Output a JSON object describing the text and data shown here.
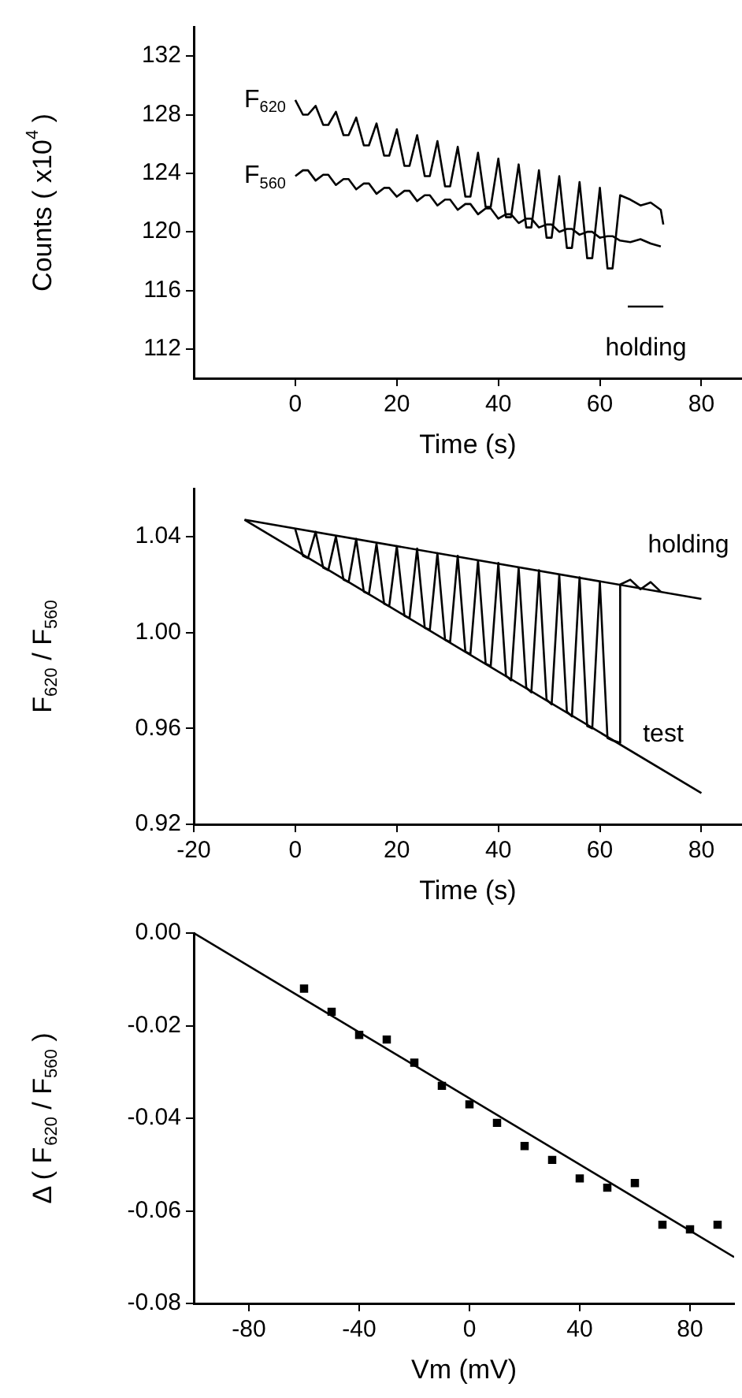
{
  "chart_data": [
    {
      "type": "line",
      "xlabel": "Time (s)",
      "ylabel": "Counts ( x10$^{4}$ )",
      "xlim": [
        -20,
        88
      ],
      "xticks": [
        0,
        20,
        40,
        60,
        80
      ],
      "ylim": [
        110,
        134
      ],
      "yticks": [
        112,
        116,
        120,
        124,
        128,
        132
      ],
      "marker": "none",
      "legend": "left",
      "series": [
        {
          "name": "F$_{620}$",
          "color": "#000000",
          "x": [
            0,
            1.5,
            2.5,
            4,
            5.5,
            6.5,
            8,
            9.5,
            10.5,
            12,
            13.5,
            14.5,
            16,
            17.5,
            18.5,
            20,
            21.5,
            22.5,
            24,
            25.5,
            26.5,
            28,
            29.5,
            30.5,
            32,
            33.5,
            34.5,
            36,
            37.5,
            38.5,
            40,
            41.5,
            42.5,
            44,
            45.5,
            46.5,
            48,
            49.5,
            50.5,
            52,
            53.5,
            54.5,
            56,
            57.5,
            58.5,
            60,
            61.5,
            62.5,
            64,
            66,
            68,
            70,
            72,
            72.5
          ],
          "values": [
            129.0,
            128.0,
            128.0,
            128.6,
            127.3,
            127.3,
            128.2,
            126.6,
            126.6,
            127.8,
            125.9,
            125.9,
            127.4,
            125.2,
            125.2,
            127.0,
            124.5,
            124.5,
            126.6,
            123.8,
            123.8,
            126.2,
            123.1,
            123.1,
            125.8,
            122.4,
            122.4,
            125.4,
            121.7,
            121.7,
            125.0,
            121.0,
            121.0,
            124.6,
            120.3,
            120.3,
            124.2,
            119.6,
            119.6,
            123.8,
            118.9,
            118.9,
            123.4,
            118.2,
            118.2,
            123.0,
            117.5,
            117.5,
            122.5,
            122.2,
            121.8,
            122.0,
            121.5,
            120.5
          ]
        },
        {
          "name": "F$_{560}$",
          "color": "#000000",
          "x": [
            0,
            1.5,
            2.5,
            4,
            5.5,
            6.5,
            8,
            9.5,
            10.5,
            12,
            13.5,
            14.5,
            16,
            17.5,
            18.5,
            20,
            21.5,
            22.5,
            24,
            25.5,
            26.5,
            28,
            29.5,
            30.5,
            32,
            33.5,
            34.5,
            36,
            37.5,
            38.5,
            40,
            41.5,
            42.5,
            44,
            45.5,
            46.5,
            48,
            49.5,
            50.5,
            52,
            53.5,
            54.5,
            56,
            57.5,
            58.5,
            60,
            61.5,
            62.5,
            64,
            66,
            68,
            70,
            72
          ],
          "values": [
            123.8,
            124.2,
            124.2,
            123.5,
            123.9,
            123.9,
            123.2,
            123.6,
            123.6,
            122.9,
            123.3,
            123.3,
            122.6,
            123.0,
            123.0,
            122.4,
            122.8,
            122.8,
            122.1,
            122.5,
            122.5,
            121.8,
            122.2,
            122.2,
            121.5,
            121.9,
            121.9,
            121.2,
            121.6,
            121.6,
            120.9,
            121.2,
            121.2,
            120.6,
            120.9,
            120.9,
            120.3,
            120.5,
            120.5,
            120.0,
            120.2,
            120.2,
            119.8,
            120.0,
            120.0,
            119.6,
            119.7,
            119.7,
            119.4,
            119.3,
            119.5,
            119.2,
            119.0
          ]
        },
        {
          "color": "#000000",
          "x": [
            65.5,
            72.5
          ],
          "values": [
            114.9,
            114.9
          ]
        }
      ],
      "annotations": [
        "holding"
      ]
    },
    {
      "type": "line",
      "xlabel": "Time (s)",
      "ylabel": "F$_{620}$ / F$_{560}$",
      "xlim": [
        -20,
        88
      ],
      "xticks": [
        -20,
        0,
        20,
        40,
        60,
        80
      ],
      "ylim": [
        0.92,
        1.06
      ],
      "yticks": [
        0.92,
        0.96,
        {
          "value": 1,
          "label": "1.00"
        },
        1.04
      ],
      "marker": "none",
      "series": [
        {
          "color": "#000000",
          "x": [
            0,
            1.5,
            2.5,
            4,
            5.5,
            6.5,
            8,
            9.5,
            10.5,
            12,
            13.5,
            14.5,
            16,
            17.5,
            18.5,
            20,
            21.5,
            22.5,
            24,
            25.5,
            26.5,
            28,
            29.5,
            30.5,
            32,
            33.5,
            34.5,
            36,
            37.5,
            38.5,
            40,
            41.5,
            42.5,
            44,
            45.5,
            46.5,
            48,
            49.5,
            50.5,
            52,
            53.5,
            54.5,
            56,
            57.5,
            58.5,
            60,
            61.5,
            62.5,
            64,
            64,
            66,
            68,
            70,
            72
          ],
          "values": [
            1.043,
            1.032,
            1.031,
            1.042,
            1.027,
            1.026,
            1.04,
            1.022,
            1.021,
            1.039,
            1.017,
            1.016,
            1.037,
            1.012,
            1.011,
            1.036,
            1.007,
            1.006,
            1.035,
            1.002,
            1.001,
            1.033,
            0.997,
            0.996,
            1.032,
            0.992,
            0.991,
            1.03,
            0.987,
            0.986,
            1.029,
            0.982,
            0.98,
            1.027,
            0.977,
            0.975,
            1.026,
            0.972,
            0.97,
            1.024,
            0.967,
            0.965,
            1.023,
            0.961,
            0.96,
            1.021,
            0.956,
            0.955,
            0.954,
            1.02,
            1.022,
            1.018,
            1.021,
            1.017
          ]
        },
        {
          "color": "#000000",
          "x": [
            -10,
            80
          ],
          "values": [
            1.047,
            1.014
          ]
        },
        {
          "color": "#000000",
          "x": [
            -10,
            80
          ],
          "values": [
            1.047,
            0.933
          ]
        }
      ],
      "annotations": [
        "holding",
        "test"
      ]
    },
    {
      "type": "scatter",
      "xlabel": "Vm (mV)",
      "ylabel": "Δ ( F$_{620}$ / F$_{560}$ )",
      "xlim": [
        -100,
        96
      ],
      "xticks": [
        -80,
        -40,
        0,
        40,
        80
      ],
      "ylim": [
        -0.08,
        0
      ],
      "yticks": [
        -0.08,
        -0.06,
        -0.04,
        -0.02,
        {
          "value": 0,
          "label": "0.00"
        }
      ],
      "marker": "square",
      "series": [
        {
          "color": "#000000",
          "x": [
            -60,
            -50,
            -40,
            -30,
            -20,
            -10,
            0,
            10,
            20,
            30,
            40,
            50,
            60,
            70,
            80,
            90
          ],
          "values": [
            -0.012,
            -0.017,
            -0.022,
            -0.023,
            -0.028,
            -0.033,
            -0.037,
            -0.041,
            -0.046,
            -0.049,
            -0.053,
            -0.055,
            -0.054,
            -0.063,
            -0.064,
            -0.063
          ]
        },
        {
          "type": "line",
          "marker": "none",
          "color": "#000000",
          "x": [
            -100,
            96
          ],
          "values": [
            0,
            -0.07
          ]
        }
      ]
    }
  ]
}
